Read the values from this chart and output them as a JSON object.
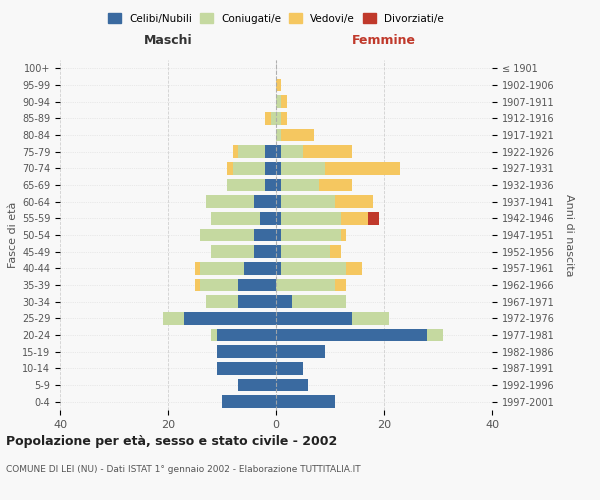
{
  "age_groups": [
    "0-4",
    "5-9",
    "10-14",
    "15-19",
    "20-24",
    "25-29",
    "30-34",
    "35-39",
    "40-44",
    "45-49",
    "50-54",
    "55-59",
    "60-64",
    "65-69",
    "70-74",
    "75-79",
    "80-84",
    "85-89",
    "90-94",
    "95-99",
    "100+"
  ],
  "birth_years": [
    "1997-2001",
    "1992-1996",
    "1987-1991",
    "1982-1986",
    "1977-1981",
    "1972-1976",
    "1967-1971",
    "1962-1966",
    "1957-1961",
    "1952-1956",
    "1947-1951",
    "1942-1946",
    "1937-1941",
    "1932-1936",
    "1927-1931",
    "1922-1926",
    "1917-1921",
    "1912-1916",
    "1907-1911",
    "1902-1906",
    "≤ 1901"
  ],
  "maschi": {
    "celibi": [
      10,
      7,
      11,
      11,
      11,
      17,
      7,
      7,
      6,
      4,
      4,
      3,
      4,
      2,
      2,
      2,
      0,
      0,
      0,
      0,
      0
    ],
    "coniugati": [
      0,
      0,
      0,
      0,
      1,
      4,
      6,
      7,
      8,
      8,
      10,
      9,
      9,
      7,
      6,
      5,
      0,
      1,
      0,
      0,
      0
    ],
    "vedovi": [
      0,
      0,
      0,
      0,
      0,
      0,
      0,
      1,
      1,
      0,
      0,
      0,
      0,
      0,
      1,
      1,
      0,
      1,
      0,
      0,
      0
    ],
    "divorziati": [
      0,
      0,
      0,
      0,
      0,
      0,
      0,
      0,
      0,
      0,
      0,
      0,
      0,
      0,
      0,
      0,
      0,
      0,
      0,
      0,
      0
    ]
  },
  "femmine": {
    "nubili": [
      11,
      6,
      5,
      9,
      28,
      14,
      3,
      0,
      1,
      1,
      1,
      1,
      1,
      1,
      1,
      1,
      0,
      0,
      0,
      0,
      0
    ],
    "coniugate": [
      0,
      0,
      0,
      0,
      3,
      7,
      10,
      11,
      12,
      9,
      11,
      11,
      10,
      7,
      8,
      4,
      1,
      1,
      1,
      0,
      0
    ],
    "vedove": [
      0,
      0,
      0,
      0,
      0,
      0,
      0,
      2,
      3,
      2,
      1,
      5,
      7,
      6,
      14,
      9,
      6,
      1,
      1,
      1,
      0
    ],
    "divorziate": [
      0,
      0,
      0,
      0,
      0,
      0,
      0,
      0,
      0,
      0,
      0,
      2,
      0,
      0,
      0,
      0,
      0,
      0,
      0,
      0,
      0
    ]
  },
  "colors": {
    "celibi_nubili": "#3a6aa0",
    "coniugati": "#c5d9a0",
    "vedovi": "#f5c760",
    "divorziati": "#c0392b"
  },
  "title": "Popolazione per età, sesso e stato civile - 2002",
  "subtitle": "COMUNE DI LEI (NU) - Dati ISTAT 1° gennaio 2002 - Elaborazione TUTTITALIA.IT",
  "xlabel_left": "Maschi",
  "xlabel_right": "Femmine",
  "ylabel_left": "Fasce di età",
  "ylabel_right": "Anni di nascita",
  "xlim": 40,
  "background_color": "#f8f8f8",
  "grid_color": "#cccccc"
}
